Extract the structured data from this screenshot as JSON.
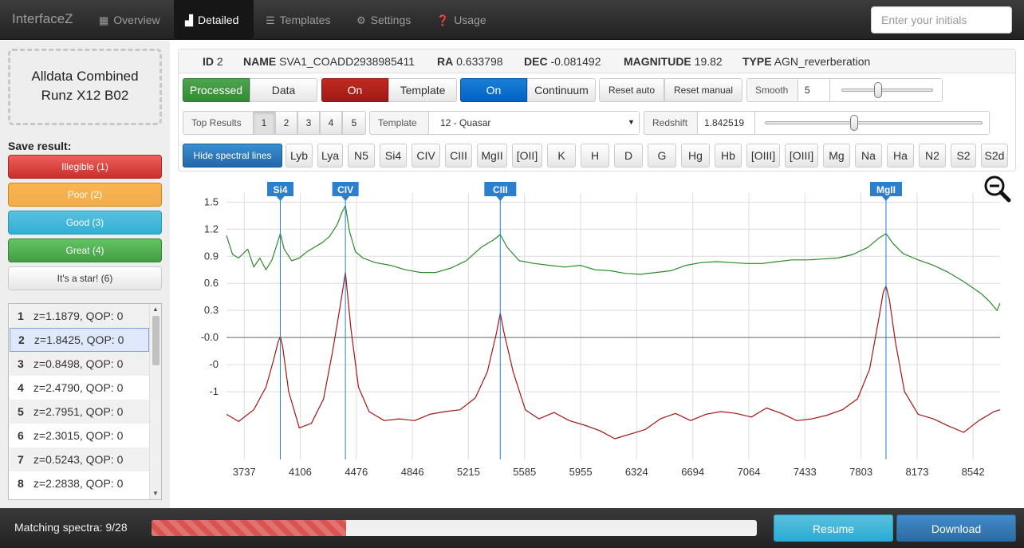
{
  "navbar": {
    "brand": "InterfaceZ",
    "items": [
      {
        "label": "Overview",
        "icon": "grid-icon",
        "active": false
      },
      {
        "label": "Detailed",
        "icon": "bar-chart-icon",
        "active": true
      },
      {
        "label": "Templates",
        "icon": "list-icon",
        "active": false
      },
      {
        "label": "Settings",
        "icon": "gear-icon",
        "active": false
      },
      {
        "label": "Usage",
        "icon": "question-icon",
        "active": false
      }
    ],
    "initials_placeholder": "Enter your initials"
  },
  "sidebar": {
    "dataset_line1": "Alldata Combined",
    "dataset_line2": "Runz X12 B02",
    "save_label": "Save result:",
    "quality_buttons": [
      "Illegible (1)",
      "Poor (2)",
      "Good (3)",
      "Great (4)",
      "It's a star! (6)"
    ],
    "results": [
      {
        "n": "1",
        "text": "z=1.1879, QOP: 0",
        "selected": false
      },
      {
        "n": "2",
        "text": "z=1.8425, QOP: 0",
        "selected": true
      },
      {
        "n": "3",
        "text": "z=0.8498, QOP: 0",
        "selected": false
      },
      {
        "n": "4",
        "text": "z=2.4790, QOP: 0",
        "selected": false
      },
      {
        "n": "5",
        "text": "z=2.7951, QOP: 0",
        "selected": false
      },
      {
        "n": "6",
        "text": "z=2.3015, QOP: 0",
        "selected": false
      },
      {
        "n": "7",
        "text": "z=0.5243, QOP: 0",
        "selected": false
      },
      {
        "n": "8",
        "text": "z=2.2838, QOP: 0",
        "selected": false
      }
    ]
  },
  "info": {
    "id_label": "ID",
    "id": "2",
    "name_label": "NAME",
    "name": "SVA1_COADD2938985411",
    "ra_label": "RA",
    "ra": "0.633798",
    "dec_label": "DEC",
    "dec": "-0.081492",
    "mag_label": "MAGNITUDE",
    "mag": "19.82",
    "type_label": "TYPE",
    "type": "AGN_reverberation"
  },
  "controls": {
    "processed": "Processed",
    "data": "Data",
    "template_on": "On",
    "template": "Template",
    "continuum_on": "On",
    "continuum": "Continuum",
    "reset_auto": "Reset auto",
    "reset_manual": "Reset manual",
    "smooth_label": "Smooth",
    "smooth_value": "5",
    "smooth_level": 0.4,
    "top_results_label": "Top Results",
    "top_pages": [
      "1",
      "2",
      "3",
      "4",
      "5"
    ],
    "top_active": "1",
    "template_label": "Template",
    "template_value": "12 - Quasar",
    "redshift_label": "Redshift",
    "redshift_value": "1.842519",
    "redshift_level": 0.41,
    "hide_lines": "Hide spectral lines",
    "lines": [
      "Lyb",
      "Lya",
      "N5",
      "Si4",
      "CIV",
      "CIII",
      "MgII",
      "[OII]",
      "K",
      "H",
      "D",
      "G",
      "Hg",
      "Hb",
      "[OIII]",
      "[OIII]",
      "Mg",
      "Na",
      "Ha",
      "N2",
      "S2",
      "S2d"
    ]
  },
  "chart_data": {
    "type": "line",
    "x_ticks": [
      "3737",
      "4106",
      "4476",
      "4846",
      "5215",
      "5585",
      "5955",
      "6324",
      "6694",
      "7064",
      "7433",
      "7803",
      "8173",
      "8542"
    ],
    "y_ticks": [
      "1.5",
      "1.2",
      "0.9",
      "0.6",
      "0.3",
      "-0.0",
      "-0",
      "-1"
    ],
    "x_range": [
      3620,
      8720
    ],
    "y_range": [
      -1.35,
      1.6
    ],
    "markers": [
      {
        "label": "Si4",
        "x": 3975
      },
      {
        "label": "CIV",
        "x": 4404
      },
      {
        "label": "CIII",
        "x": 5425
      },
      {
        "label": "MgII",
        "x": 7968
      }
    ],
    "colors": {
      "data": "#2a8a2a",
      "template": "#a31515",
      "marker": "#2a7fd0",
      "grid": "#dcdcdc",
      "zero": "#999999"
    },
    "series": [
      {
        "color_key": "data",
        "x": [
          3620,
          3660,
          3700,
          3760,
          3800,
          3840,
          3880,
          3920,
          3950,
          3975,
          4000,
          4050,
          4100,
          4150,
          4200,
          4250,
          4300,
          4350,
          4380,
          4404,
          4430,
          4470,
          4520,
          4600,
          4700,
          4800,
          4900,
          5000,
          5100,
          5200,
          5300,
          5380,
          5425,
          5470,
          5550,
          5650,
          5750,
          5850,
          5950,
          6050,
          6150,
          6250,
          6350,
          6450,
          6550,
          6650,
          6750,
          6850,
          6950,
          7050,
          7150,
          7250,
          7350,
          7450,
          7550,
          7650,
          7750,
          7850,
          7920,
          7968,
          8010,
          8080,
          8180,
          8280,
          8380,
          8480,
          8540,
          8600,
          8650,
          8690,
          8700,
          8720
        ],
        "y": [
          1.13,
          0.92,
          0.88,
          0.98,
          0.78,
          0.88,
          0.75,
          0.86,
          1.02,
          1.15,
          0.98,
          0.85,
          0.88,
          0.95,
          1.0,
          1.05,
          1.12,
          1.25,
          1.38,
          1.46,
          1.18,
          0.95,
          0.88,
          0.83,
          0.8,
          0.75,
          0.72,
          0.72,
          0.77,
          0.85,
          1.0,
          1.08,
          1.14,
          1.0,
          0.85,
          0.82,
          0.8,
          0.78,
          0.8,
          0.75,
          0.74,
          0.71,
          0.7,
          0.72,
          0.74,
          0.8,
          0.83,
          0.84,
          0.83,
          0.82,
          0.82,
          0.84,
          0.86,
          0.86,
          0.87,
          0.88,
          0.92,
          1.0,
          1.1,
          1.15,
          1.05,
          0.93,
          0.86,
          0.8,
          0.72,
          0.62,
          0.55,
          0.48,
          0.4,
          0.32,
          0.3,
          0.38
        ]
      },
      {
        "color_key": "template",
        "x": [
          3620,
          3700,
          3800,
          3880,
          3930,
          3960,
          3975,
          3990,
          4030,
          4100,
          4180,
          4260,
          4320,
          4370,
          4404,
          4440,
          4490,
          4560,
          4660,
          4760,
          4860,
          4960,
          5060,
          5160,
          5260,
          5340,
          5400,
          5425,
          5450,
          5510,
          5590,
          5680,
          5780,
          5880,
          5980,
          6080,
          6180,
          6280,
          6380,
          6480,
          6580,
          6680,
          6780,
          6880,
          6980,
          7080,
          7180,
          7280,
          7380,
          7480,
          7580,
          7680,
          7780,
          7860,
          7920,
          7950,
          7968,
          7990,
          8030,
          8090,
          8180,
          8280,
          8380,
          8480,
          8580,
          8680,
          8720
        ],
        "y": [
          -0.85,
          -0.93,
          -0.8,
          -0.55,
          -0.25,
          -0.05,
          0.01,
          -0.1,
          -0.6,
          -1.0,
          -0.95,
          -0.68,
          -0.15,
          0.35,
          0.72,
          0.1,
          -0.55,
          -0.82,
          -0.92,
          -0.9,
          -0.92,
          -0.85,
          -0.82,
          -0.8,
          -0.67,
          -0.38,
          0.05,
          0.27,
          0.05,
          -0.38,
          -0.8,
          -0.9,
          -0.83,
          -0.92,
          -0.97,
          -1.03,
          -1.12,
          -1.07,
          -1.02,
          -0.9,
          -0.84,
          -0.92,
          -0.85,
          -0.82,
          -0.84,
          -0.88,
          -0.78,
          -0.84,
          -0.92,
          -0.9,
          -0.86,
          -0.8,
          -0.68,
          -0.35,
          0.2,
          0.5,
          0.57,
          0.42,
          -0.05,
          -0.6,
          -0.85,
          -0.9,
          -0.98,
          -1.05,
          -0.92,
          -0.82,
          -0.8
        ]
      }
    ]
  },
  "footer": {
    "matching_label": "Matching spectra: 9/28",
    "progress_fraction": 0.3214,
    "resume": "Resume",
    "download": "Download"
  }
}
